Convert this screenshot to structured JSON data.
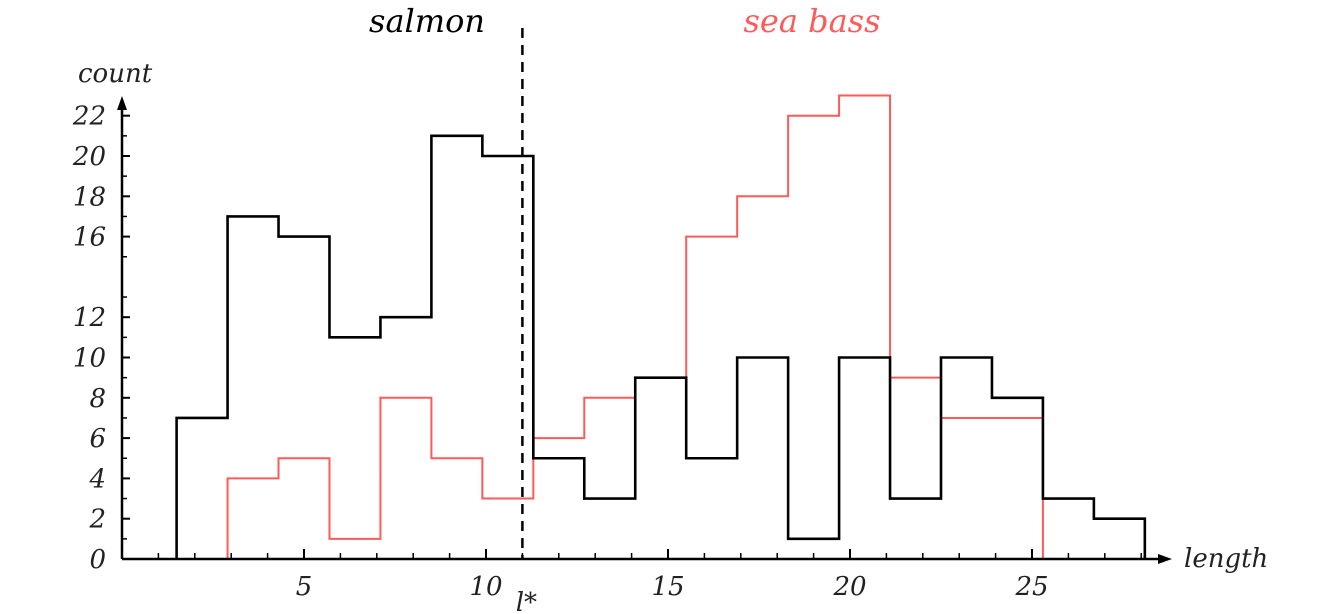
{
  "chart_data": {
    "type": "line",
    "step": true,
    "xlabel": "length",
    "ylabel": "count",
    "xlim": [
      0,
      29
    ],
    "ylim": [
      0,
      23
    ],
    "x_ticks": [
      5,
      10,
      15,
      20,
      25
    ],
    "y_ticks": [
      0,
      2,
      4,
      6,
      8,
      10,
      12,
      16,
      18,
      20,
      22
    ],
    "grid": false,
    "threshold": {
      "x": 11,
      "label": "l*",
      "style": "dashed"
    },
    "bin_edges": [
      1.5,
      2.9,
      4.3,
      5.7,
      7.1,
      8.5,
      9.9,
      11.3,
      12.7,
      14.1,
      15.5,
      16.9,
      18.3,
      19.7,
      21.1,
      22.5,
      23.9,
      25.3,
      26.7,
      28.1
    ],
    "series": [
      {
        "name": "salmon",
        "color": "#000000",
        "values": [
          7,
          17,
          16,
          11,
          12,
          21,
          20,
          5,
          3,
          9,
          5,
          10,
          1,
          10,
          3,
          10,
          8,
          3,
          2
        ]
      },
      {
        "name": "sea bass",
        "color": "#ff5a5a",
        "values": [
          0,
          4,
          5,
          1,
          8,
          5,
          3,
          6,
          8,
          9,
          16,
          18,
          22,
          23,
          9,
          7,
          7,
          0,
          0
        ]
      }
    ]
  }
}
